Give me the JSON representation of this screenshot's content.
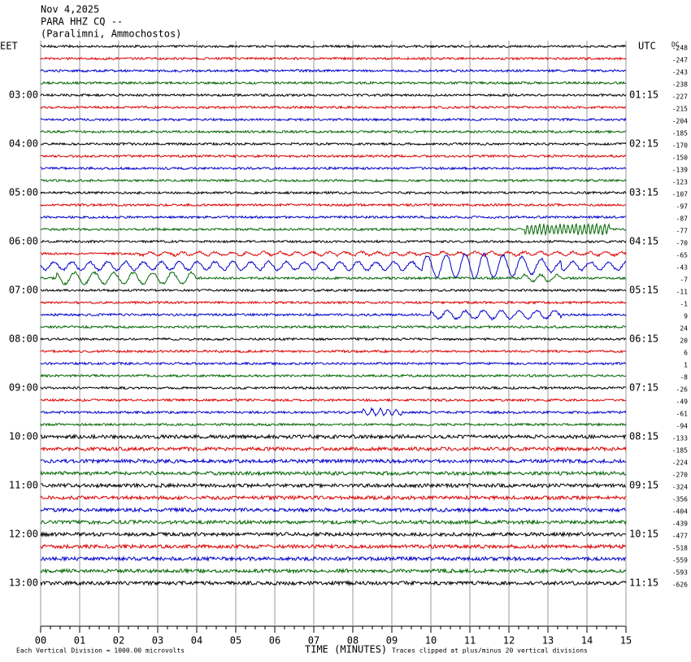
{
  "chart_data": {
    "type": "helicorder",
    "title": [
      "Nov 4,2025",
      "PARA HHZ CQ --",
      "(Paralimni, Ammochostos)"
    ],
    "left_zone": "EET",
    "right_zone": "UTC",
    "dc_header": "DC",
    "left_hours": [
      "03:00",
      "04:00",
      "05:00",
      "06:00",
      "07:00",
      "08:00",
      "09:00",
      "10:00",
      "11:00",
      "12:00",
      "13:00"
    ],
    "right_hours": [
      "01:15",
      "02:15",
      "03:15",
      "04:15",
      "05:15",
      "06:15",
      "07:15",
      "08:15",
      "09:15",
      "10:15",
      "11:15"
    ],
    "dc_values": [
      -248,
      -247,
      -243,
      -238,
      -227,
      -215,
      -204,
      -185,
      -170,
      -150,
      -139,
      -123,
      -107,
      -97,
      -87,
      -77,
      -70,
      -65,
      -43,
      -7,
      -11,
      -1,
      9,
      24,
      20,
      6,
      1,
      -8,
      -26,
      -49,
      -61,
      -94,
      -133,
      -185,
      -224,
      -270,
      -324,
      -356,
      -404,
      -439,
      -477,
      -518,
      -559,
      -593,
      -626
    ],
    "trace_colors": [
      "#000000",
      "#dd0000",
      "#0000cc",
      "#006600"
    ],
    "xlim": [
      0,
      15
    ],
    "xticks": [
      {
        "value": 0,
        "label": "00"
      },
      {
        "value": 1,
        "label": "01"
      },
      {
        "value": 2,
        "label": "02"
      },
      {
        "value": 3,
        "label": "03"
      },
      {
        "value": 4,
        "label": "04"
      },
      {
        "value": 5,
        "label": "05"
      },
      {
        "value": 6,
        "label": "06"
      },
      {
        "value": 7,
        "label": "07"
      },
      {
        "value": 8,
        "label": "08"
      },
      {
        "value": 9,
        "label": "09"
      },
      {
        "value": 10,
        "label": "10"
      },
      {
        "value": 11,
        "label": "11"
      },
      {
        "value": 12,
        "label": "12"
      },
      {
        "value": 13,
        "label": "13"
      },
      {
        "value": 14,
        "label": "14"
      },
      {
        "value": 15,
        "label": "15"
      }
    ],
    "xlabel": "TIME (MINUTES)",
    "scale_note": "Each Vertical Division = 1000.00 microvolts",
    "clip_note": "Traces clipped at plus/minus 20 vertical divisions"
  }
}
